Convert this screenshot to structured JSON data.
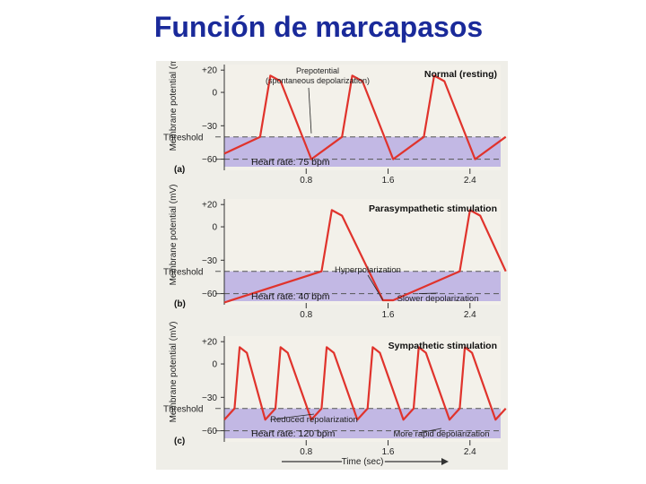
{
  "slide": {
    "title": "Función de marcapasos"
  },
  "figure": {
    "xlabel": "Time (sec)"
  },
  "chart_data": [
    {
      "type": "line",
      "panel_label": "(a)",
      "title": "Normal (resting)",
      "ylabel": "Membrane potential (mV)",
      "y_ticks": [
        "+20",
        "0",
        "−30",
        "−60"
      ],
      "y_tick_values": [
        20,
        0,
        -30,
        -60
      ],
      "threshold_label": "Threshold",
      "threshold_mv": -40,
      "x_ticks": [
        "0.8",
        "1.6",
        "2.4"
      ],
      "x_tick_values": [
        0.8,
        1.6,
        2.4
      ],
      "xlim": [
        0,
        2.7
      ],
      "ylim": [
        -70,
        25
      ],
      "heart_rate": "Heart rate: 75 bpm",
      "annotations": [
        {
          "text": "Prepotential (spontaneous depolarization)",
          "x": 0.85,
          "y": -40
        }
      ],
      "series": [
        {
          "x": [
            0,
            0.35,
            0.45,
            0.55,
            0.85,
            1.15,
            1.25,
            1.35,
            1.65,
            1.95,
            2.05,
            2.15,
            2.45,
            2.75
          ],
          "y": [
            -55,
            -40,
            15,
            10,
            -60,
            -40,
            15,
            10,
            -60,
            -40,
            15,
            10,
            -60,
            -40
          ]
        }
      ]
    },
    {
      "type": "line",
      "panel_label": "(b)",
      "title": "Parasympathetic stimulation",
      "ylabel": "Membrane potential (mV)",
      "y_ticks": [
        "+20",
        "0",
        "−30",
        "−60"
      ],
      "y_tick_values": [
        20,
        0,
        -30,
        -60
      ],
      "threshold_label": "Threshold",
      "threshold_mv": -40,
      "x_ticks": [
        "0.8",
        "1.6",
        "2.4"
      ],
      "x_tick_values": [
        0.8,
        1.6,
        2.4
      ],
      "xlim": [
        0,
        2.7
      ],
      "ylim": [
        -70,
        25
      ],
      "heart_rate": "Heart rate: 40 bpm",
      "annotations": [
        {
          "text": "Hyperpolarization",
          "x": 1.55,
          "y": -66
        },
        {
          "text": "Slower depolarization",
          "x": 1.9,
          "y": -60
        }
      ],
      "series": [
        {
          "x": [
            0,
            0.95,
            1.05,
            1.15,
            1.55,
            1.65,
            2.3,
            2.4,
            2.5,
            2.75
          ],
          "y": [
            -68,
            -40,
            15,
            10,
            -66,
            -66,
            -40,
            15,
            10,
            -40
          ]
        }
      ]
    },
    {
      "type": "line",
      "panel_label": "(c)",
      "title": "Sympathetic stimulation",
      "ylabel": "Membrane potential (mV)",
      "y_ticks": [
        "+20",
        "0",
        "−30",
        "−60"
      ],
      "y_tick_values": [
        20,
        0,
        -30,
        -60
      ],
      "threshold_label": "Threshold",
      "threshold_mv": -40,
      "x_ticks": [
        "0.8",
        "1.6",
        "2.4"
      ],
      "x_tick_values": [
        0.8,
        1.6,
        2.4
      ],
      "xlim": [
        0,
        2.7
      ],
      "ylim": [
        -70,
        25
      ],
      "heart_rate": "Heart rate: 120 bpm",
      "annotations": [
        {
          "text": "Reduced repolarization",
          "x": 0.45,
          "y": -50
        },
        {
          "text": "More rapid depolarization",
          "x": 1.9,
          "y": -62
        }
      ],
      "series": [
        {
          "x": [
            0,
            0.1,
            0.15,
            0.22,
            0.4,
            0.5,
            0.55,
            0.62,
            0.85,
            0.95,
            1.0,
            1.07,
            1.3,
            1.4,
            1.45,
            1.52,
            1.75,
            1.85,
            1.9,
            1.97,
            2.2,
            2.3,
            2.35,
            2.42,
            2.65,
            2.75
          ],
          "y": [
            -50,
            -40,
            15,
            10,
            -50,
            -40,
            15,
            10,
            -50,
            -40,
            15,
            10,
            -50,
            -40,
            15,
            10,
            -50,
            -40,
            15,
            10,
            -50,
            -40,
            15,
            10,
            -50,
            -40
          ]
        }
      ]
    }
  ],
  "colors": {
    "title": "#1a2a9a",
    "trace": "#e0332c",
    "fill": "#b9aee3",
    "fill_dark": "#9a90d4",
    "panel_bg": "#f3f1ea",
    "axis": "#333333",
    "dashed": "#555555"
  }
}
